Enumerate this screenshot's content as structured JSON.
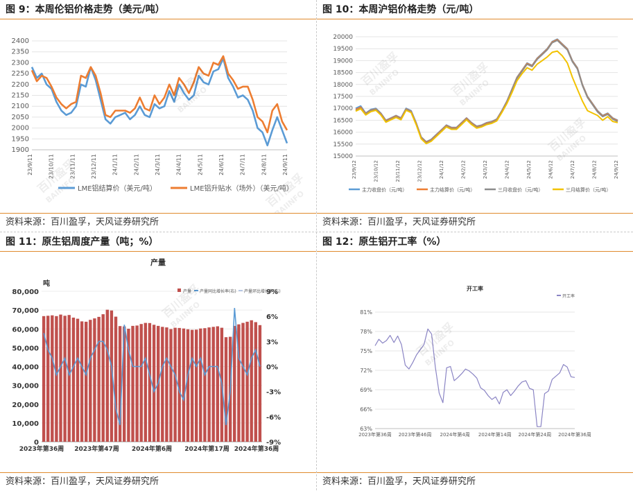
{
  "panels": {
    "p9": {
      "title": "图 9：本周伦铝价格走势（美元/吨）",
      "source": "资料来源：百川盈孚，天风证券研究所"
    },
    "p10": {
      "title": "图 10：本周沪铝价格走势（元/吨）",
      "source": "资料来源：百川盈孚，天风证券研究所"
    },
    "p11": {
      "title": "图 11：原生铝周度产量（吨；%）",
      "source": "资料来源：百川盈孚，天风证券研究所"
    },
    "p12": {
      "title": "图 12：原生铝开工率（%）",
      "source": "资料来源：百川盈孚，天风证券研究所"
    }
  },
  "watermark": {
    "cn": "百川盈孚",
    "en": "BAIINFO"
  },
  "colors": {
    "accent": "#e08a2c",
    "blue": "#5b9bd5",
    "orange": "#ed7d31",
    "gray": "#8c8c8c",
    "yellow": "#f2c200",
    "red": "#c0504d",
    "purple": "#8a84c4"
  },
  "chart_data": [
    {
      "id": "lme",
      "type": "line",
      "title": "",
      "ylim": [
        1900,
        2400
      ],
      "yticks": [
        "1900",
        "1950",
        "2000",
        "2050",
        "2100",
        "2150",
        "2200",
        "2250",
        "2300",
        "2350",
        "2400"
      ],
      "xtick_labels": [
        "23/9/11",
        "23/10/11",
        "23/11/11",
        "23/12/11",
        "24/1/11",
        "24/2/11",
        "24/3/11",
        "24/4/11",
        "24/5/11",
        "24/6/11",
        "24/7/11",
        "24/8/11",
        "24/9/11"
      ],
      "series": [
        {
          "name": "LME铝结算价（美元/吨）",
          "color": "#5b9bd5",
          "values": [
            2280,
            2230,
            2250,
            2200,
            2180,
            2120,
            2080,
            2060,
            2070,
            2100,
            2200,
            2190,
            2280,
            2220,
            2130,
            2040,
            2020,
            2050,
            2060,
            2070,
            2040,
            2060,
            2100,
            2060,
            2050,
            2110,
            2090,
            2100,
            2170,
            2120,
            2200,
            2160,
            2130,
            2150,
            2240,
            2210,
            2200,
            2260,
            2270,
            2320,
            2230,
            2190,
            2140,
            2150,
            2130,
            2080,
            2000,
            1980,
            1920,
            1990,
            2050,
            1990,
            1930
          ]
        },
        {
          "name": "LME铝升贴水（场外）（美元/吨）",
          "color": "#ed7d31",
          "values": [
            2265,
            2215,
            2240,
            2230,
            2190,
            2140,
            2110,
            2090,
            2110,
            2120,
            2240,
            2230,
            2280,
            2240,
            2160,
            2060,
            2050,
            2080,
            2080,
            2080,
            2070,
            2090,
            2140,
            2090,
            2080,
            2150,
            2110,
            2140,
            2200,
            2150,
            2230,
            2200,
            2160,
            2210,
            2280,
            2250,
            2240,
            2300,
            2290,
            2330,
            2250,
            2220,
            2180,
            2190,
            2190,
            2130,
            2050,
            2030,
            1980,
            2080,
            2110,
            2030,
            1990
          ]
        }
      ]
    },
    {
      "id": "shfe",
      "type": "line",
      "title": "",
      "ylim": [
        15000,
        20000
      ],
      "yticks": [
        "15000",
        "15500",
        "16000",
        "16500",
        "17000",
        "17500",
        "18000",
        "18500",
        "19000",
        "19500",
        "20000"
      ],
      "xtick_labels": [
        "23/9/12",
        "23/10/12",
        "23/11/12",
        "23/12/12",
        "24/1/12",
        "24/2/12",
        "24/3/12",
        "24/4/12",
        "24/5/12",
        "24/6/12",
        "24/7/12",
        "24/8/12",
        "24/9/12"
      ],
      "series": [
        {
          "name": "主力收盘价（元/吨）",
          "color": "#5b9bd5",
          "values": [
            17000,
            17100,
            16800,
            16950,
            17000,
            16800,
            16500,
            16600,
            16700,
            16600,
            17000,
            16900,
            16400,
            15800,
            15600,
            15700,
            15900,
            16100,
            16300,
            16200,
            16200,
            16400,
            16600,
            16400,
            16250,
            16300,
            16400,
            16450,
            16550,
            16900,
            17300,
            17800,
            18300,
            18600,
            18900,
            18800,
            19100,
            19300,
            19500,
            19800,
            19900,
            19700,
            19500,
            19000,
            18700,
            18000,
            17500,
            17200,
            16900,
            16700,
            16800,
            16600,
            16500
          ]
        },
        {
          "name": "主力结算价（元/吨）",
          "color": "#ed7d31",
          "values": [
            16950,
            17050,
            16780,
            16920,
            16970,
            16780,
            16480,
            16580,
            16680,
            16580,
            16970,
            16870,
            16380,
            15780,
            15580,
            15680,
            15880,
            16080,
            16280,
            16180,
            16180,
            16380,
            16580,
            16380,
            16230,
            16280,
            16380,
            16430,
            16530,
            16880,
            17280,
            17780,
            18280,
            18580,
            18880,
            18780,
            19080,
            19280,
            19480,
            19780,
            19880,
            19680,
            19480,
            18980,
            18680,
            17980,
            17480,
            17180,
            16880,
            16680,
            16780,
            16580,
            16480
          ]
        },
        {
          "name": "三月收盘价（元/吨）",
          "color": "#8c8c8c",
          "values": [
            16900,
            17000,
            16750,
            16900,
            16950,
            16750,
            16450,
            16550,
            16650,
            16550,
            16950,
            16850,
            16350,
            15750,
            15550,
            15650,
            15850,
            16050,
            16250,
            16150,
            16150,
            16350,
            16550,
            16350,
            16200,
            16250,
            16350,
            16400,
            16500,
            16850,
            17250,
            17750,
            18250,
            18550,
            18850,
            18750,
            19050,
            19250,
            19450,
            19750,
            19850,
            19650,
            19450,
            18950,
            18650,
            17950,
            17450,
            17150,
            16850,
            16650,
            16750,
            16550,
            16450
          ]
        },
        {
          "name": "三月结算价（元/吨）",
          "color": "#f2c200",
          "values": [
            16880,
            16980,
            16720,
            16860,
            16920,
            16720,
            16420,
            16520,
            16620,
            16520,
            16920,
            16820,
            16320,
            15720,
            15520,
            15620,
            15820,
            16020,
            16220,
            16120,
            16120,
            16320,
            16520,
            16320,
            16170,
            16220,
            16320,
            16370,
            16470,
            16820,
            17200,
            17650,
            18150,
            18450,
            18700,
            18600,
            18850,
            19000,
            19150,
            19350,
            19400,
            19200,
            18900,
            18300,
            17800,
            17300,
            16900,
            16800,
            16700,
            16500,
            16650,
            16450,
            16400
          ]
        }
      ]
    },
    {
      "id": "output",
      "type": "bar",
      "title": "产量",
      "y1_unit": "吨",
      "ylim": [
        0,
        80000
      ],
      "y2lim": [
        -9,
        9
      ],
      "yticks": [
        "0",
        "10,000",
        "20,000",
        "30,000",
        "40,000",
        "50,000",
        "60,000",
        "70,000",
        "80,000"
      ],
      "y2ticks": [
        "-9%",
        "-6%",
        "-3%",
        "0%",
        "3%",
        "6%",
        "9%"
      ],
      "xtick_labels": [
        "2023年第36周",
        "2023年第47周",
        "2024年第6周",
        "2024年第17周",
        "2024年第36周"
      ],
      "series": [
        {
          "name": "产量",
          "color": "#c0504d",
          "values": [
            66800,
            67000,
            67200,
            66800,
            67600,
            67000,
            67400,
            66000,
            65400,
            64000,
            63800,
            64800,
            65600,
            66400,
            67800,
            70200,
            69800,
            66500,
            61500,
            61300,
            60100,
            61600,
            61800,
            62600,
            63200,
            63100,
            62200,
            61600,
            61100,
            60800,
            59900,
            60600,
            60500,
            60200,
            59800,
            59500,
            59600,
            60200,
            60400,
            60800,
            61100,
            61400,
            60600,
            55600,
            55800,
            61600,
            62400,
            63200,
            63800,
            64600,
            63600,
            62000
          ]
        },
        {
          "name": "产量同比增长率(右)",
          "color": "#5b9bd5",
          "values": [
            4,
            2,
            1,
            -1,
            0,
            1,
            -1,
            0,
            1,
            0,
            -1,
            1,
            2,
            3,
            3,
            2,
            0,
            -5,
            -7,
            5,
            2,
            0,
            0,
            0,
            1,
            -1,
            -3,
            -2,
            0,
            1,
            0,
            -1,
            -3,
            -4,
            -1,
            1,
            0,
            1,
            -1,
            0,
            0,
            0,
            -2,
            -7,
            -3,
            7,
            1,
            0,
            -1,
            1,
            2,
            0
          ]
        },
        {
          "name": "产量环比增长率(右)",
          "color": "#b7c7e3",
          "values": []
        }
      ]
    },
    {
      "id": "rate",
      "type": "line",
      "title": "开工率",
      "ylim": [
        63,
        81
      ],
      "yticks": [
        "63%",
        "66%",
        "69%",
        "72%",
        "75%",
        "78%",
        "81%"
      ],
      "xtick_labels": [
        "2023年第36周",
        "2023年第46周",
        "2024年第4周",
        "2024年第14周",
        "2024年第24周",
        "2024年第36周"
      ],
      "series": [
        {
          "name": "开工率",
          "color": "#8a84c4",
          "values": [
            75.8,
            76.8,
            76.2,
            76.6,
            77.4,
            76.3,
            77.3,
            76.0,
            72.8,
            72.2,
            73.2,
            74.4,
            75.2,
            76.0,
            78.4,
            77.6,
            72.5,
            68.5,
            67.0,
            72.4,
            72.6,
            70.4,
            70.9,
            71.5,
            72.2,
            71.9,
            71.4,
            70.8,
            69.3,
            68.9,
            68.1,
            67.5,
            67.9,
            66.8,
            68.6,
            69.0,
            68.1,
            68.8,
            69.6,
            70.2,
            70.4,
            69.2,
            69.0,
            63.3,
            63.3,
            68.4,
            68.8,
            70.6,
            71.1,
            71.6,
            72.9,
            72.5,
            71.0,
            70.9
          ]
        }
      ]
    }
  ]
}
